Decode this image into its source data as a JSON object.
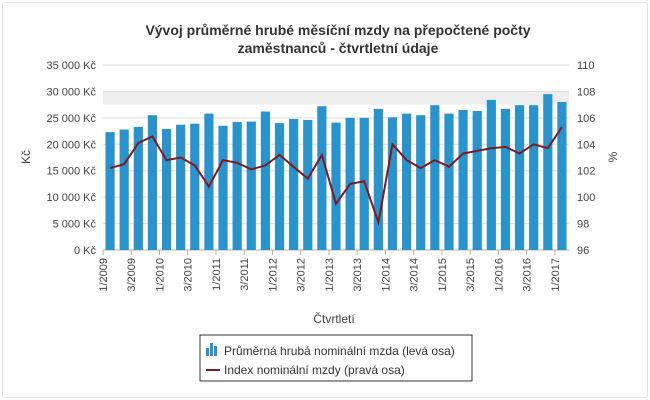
{
  "chart_data": {
    "type": "bar+line",
    "title_line1": "Vývoj průměrné hrubé měsíční mzdy na přepočtené počty",
    "title_line2": "zaměstnanců - čtvrtletní údaje",
    "xlabel": "Čtvrtletí",
    "ylabel_left": "Kč",
    "ylabel_right": "%",
    "ylim_left": [
      0,
      35000
    ],
    "ylim_right": [
      96,
      110
    ],
    "y_ticks_left": [
      "0 Kč",
      "5 000 Kč",
      "10 000 Kč",
      "15 000 Kč",
      "20 000 Kč",
      "25 000 Kč",
      "30 000 Kč",
      "35 000 Kč"
    ],
    "y_ticks_right": [
      "96",
      "98",
      "100",
      "102",
      "104",
      "106",
      "108",
      "110"
    ],
    "categories": [
      "1/2009",
      "2/2009",
      "3/2009",
      "4/2009",
      "1/2010",
      "2/2010",
      "3/2010",
      "4/2010",
      "1/2011",
      "2/2011",
      "3/2011",
      "4/2011",
      "1/2012",
      "2/2012",
      "3/2012",
      "4/2012",
      "1/2013",
      "2/2013",
      "3/2013",
      "4/2013",
      "1/2014",
      "2/2014",
      "3/2014",
      "4/2014",
      "1/2015",
      "2/2015",
      "3/2015",
      "4/2015",
      "1/2016",
      "2/2016",
      "3/2016",
      "4/2016",
      "1/2017"
    ],
    "x_tick_labels": [
      "1/2009",
      "3/2009",
      "1/2010",
      "3/2010",
      "1/2011",
      "3/2011",
      "1/2012",
      "3/2012",
      "1/2013",
      "3/2013",
      "1/2014",
      "3/2014",
      "1/2015",
      "3/2015",
      "1/2016",
      "3/2016",
      "1/2017"
    ],
    "series": [
      {
        "name": "Průměrná hrubá nominální mzda (levá osa)",
        "type": "bar",
        "axis": "left",
        "color": "#2b93cc",
        "values": [
          22300,
          22800,
          23300,
          25500,
          22900,
          23700,
          23900,
          25800,
          23500,
          24200,
          24300,
          26200,
          24000,
          24800,
          24600,
          27200,
          24100,
          25000,
          25000,
          26700,
          25100,
          25800,
          25500,
          27400,
          25800,
          26500,
          26300,
          28400,
          26700,
          27400,
          27400,
          29500,
          28000
        ]
      },
      {
        "name": "Index nominální mzdy (pravá osa)",
        "type": "line",
        "axis": "right",
        "color": "#7a1b22",
        "values": [
          102.2,
          102.5,
          104.1,
          104.6,
          102.8,
          103.0,
          102.4,
          100.8,
          102.8,
          102.6,
          102.1,
          102.4,
          103.2,
          102.3,
          101.4,
          103.2,
          99.5,
          101.0,
          101.2,
          98.1,
          104.0,
          102.8,
          102.2,
          102.8,
          102.3,
          103.3,
          103.5,
          103.7,
          103.8,
          103.3,
          104.0,
          103.7,
          105.3
        ]
      }
    ],
    "legend_position": "bottom",
    "grid": true
  }
}
